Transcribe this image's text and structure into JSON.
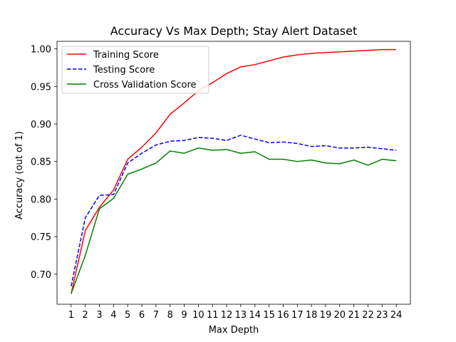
{
  "chart_data": {
    "type": "line",
    "title": "Accuracy Vs Max Depth; Stay Alert Dataset",
    "xlabel": "Max Depth",
    "ylabel": "Accuracy (out of 1)",
    "x": [
      1,
      2,
      3,
      4,
      5,
      6,
      7,
      8,
      9,
      10,
      11,
      12,
      13,
      14,
      15,
      16,
      17,
      18,
      19,
      20,
      21,
      22,
      23,
      24
    ],
    "x_tick_labels": [
      "1",
      "2",
      "3",
      "4",
      "5",
      "6",
      "7",
      "8",
      "9",
      "10",
      "11",
      "12",
      "13",
      "14",
      "15",
      "16",
      "17",
      "18",
      "19",
      "20",
      "21",
      "22",
      "23",
      "24"
    ],
    "y_tick_values": [
      0.7,
      0.75,
      0.8,
      0.85,
      0.9,
      0.95,
      1.0
    ],
    "y_tick_labels": [
      "0.70",
      "0.75",
      "0.80",
      "0.85",
      "0.90",
      "0.95",
      "1.00"
    ],
    "xlim": [
      0,
      25
    ],
    "ylim": [
      0.66,
      1.01
    ],
    "grid": false,
    "legend_position": "top-left",
    "series": [
      {
        "name": "Training Score",
        "color": "#ff0000",
        "style": "solid",
        "values": [
          0.674,
          0.758,
          0.789,
          0.812,
          0.853,
          0.869,
          0.888,
          0.913,
          0.928,
          0.944,
          0.955,
          0.967,
          0.976,
          0.979,
          0.984,
          0.989,
          0.992,
          0.994,
          0.995,
          0.996,
          0.997,
          0.998,
          0.999,
          0.999
        ]
      },
      {
        "name": "Testing Score",
        "color": "#0000ff",
        "style": "dashed",
        "values": [
          0.684,
          0.775,
          0.805,
          0.806,
          0.848,
          0.861,
          0.872,
          0.877,
          0.878,
          0.882,
          0.881,
          0.878,
          0.885,
          0.88,
          0.875,
          0.876,
          0.874,
          0.87,
          0.871,
          0.868,
          0.868,
          0.869,
          0.867,
          0.865
        ]
      },
      {
        "name": "Cross Validation Score",
        "color": "#008000",
        "style": "solid",
        "values": [
          0.674,
          0.725,
          0.787,
          0.801,
          0.833,
          0.84,
          0.848,
          0.864,
          0.861,
          0.868,
          0.865,
          0.866,
          0.861,
          0.863,
          0.853,
          0.853,
          0.85,
          0.852,
          0.848,
          0.847,
          0.852,
          0.845,
          0.853,
          0.851
        ]
      }
    ]
  }
}
